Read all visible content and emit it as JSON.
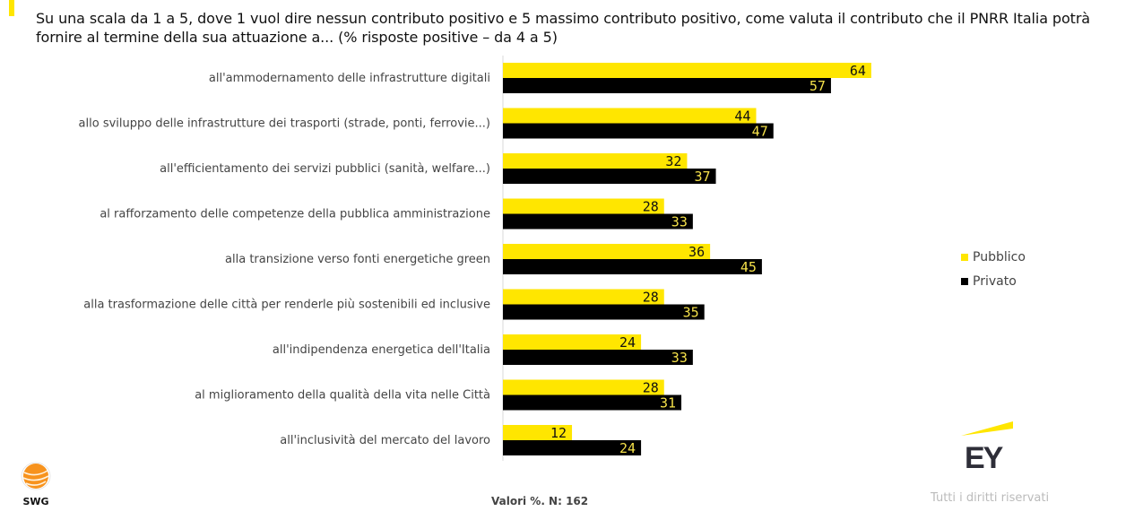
{
  "header": {
    "title": "Su una scala da 1 a 5, dove 1 vuol dire nessun contributo positivo e 5 massimo contributo positivo, come valuta il contributo che il PNRR Italia potrà fornire al termine della sua attuazione a... (% risposte positive – da 4 a 5)"
  },
  "colors": {
    "pubblico": "#FFE600",
    "privato": "#000000",
    "accent": "#FFE600"
  },
  "legend": [
    {
      "label": "Pubblico",
      "color": "#FFE600"
    },
    {
      "label": "Privato",
      "color": "#000000"
    }
  ],
  "footer": {
    "note": "Valori %. N: 162",
    "swg_logo": "SWG",
    "ey_logo": "EY",
    "rights": "Tutti i diritti riservati"
  },
  "chart_data": {
    "type": "bar",
    "orientation": "horizontal",
    "title": "Su una scala da 1 a 5, dove 1 vuol dire nessun contributo positivo e 5 massimo contributo positivo, come valuta il contributo che il PNRR Italia potrà fornire al termine della sua attuazione a... (% risposte positive – da 4 a 5)",
    "xlabel": "",
    "ylabel": "",
    "xlim": [
      0,
      100
    ],
    "grid": false,
    "legend_position": "right",
    "categories": [
      "all'ammodernamento delle infrastrutture digitali",
      "allo sviluppo delle infrastrutture dei trasporti (strade, ponti, ferrovie...)",
      "all'efficientamento dei servizi pubblici (sanità, welfare...)",
      "al rafforzamento delle competenze della pubblica amministrazione",
      "alla transizione verso fonti energetiche green",
      "alla trasformazione delle città per renderle più sostenibili ed inclusive",
      "all'indipendenza energetica dell'Italia",
      "al miglioramento della qualità della vita nelle Città",
      "all'inclusività del mercato del lavoro"
    ],
    "series": [
      {
        "name": "Pubblico",
        "color": "#FFE600",
        "label_color": "#111111",
        "values": [
          64,
          44,
          32,
          28,
          36,
          28,
          24,
          28,
          12
        ]
      },
      {
        "name": "Privato",
        "color": "#000000",
        "label_color": "#F5E14A",
        "values": [
          57,
          47,
          37,
          33,
          45,
          35,
          33,
          31,
          24
        ]
      }
    ],
    "note": "Valori %. N: 162"
  }
}
